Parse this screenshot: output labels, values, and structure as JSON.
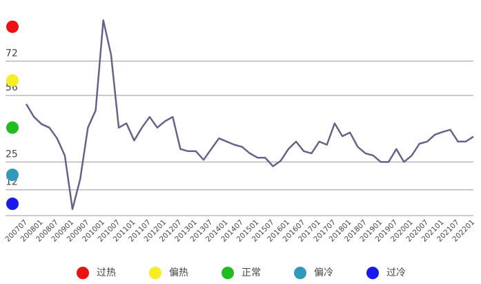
{
  "chart_data": {
    "type": "line",
    "categories": [
      "200707",
      null,
      "200801",
      null,
      "200807",
      null,
      "200901",
      null,
      "200907",
      null,
      "201001",
      null,
      "201007",
      null,
      "201101",
      null,
      "201107",
      null,
      "201201",
      null,
      "201207",
      null,
      "201301",
      null,
      "201307",
      null,
      "201401",
      null,
      "201407",
      null,
      "201501",
      null,
      "201507",
      null,
      "201601",
      null,
      "201607",
      null,
      "201701",
      null,
      "201707",
      null,
      "201801",
      null,
      "201807",
      null,
      "201901",
      null,
      "201907",
      null,
      "202001",
      null,
      "202007",
      null,
      "202101",
      null,
      "202107",
      null,
      "202201"
    ],
    "series": [
      {
        "color": "#63638a",
        "values": [
          52,
          46,
          42.6,
          41,
          36,
          28,
          3,
          17,
          41,
          49,
          91,
          75,
          41,
          43,
          35,
          41,
          46,
          41,
          44,
          46,
          31,
          30,
          30,
          26,
          31,
          36,
          34.5,
          33,
          32,
          29,
          27,
          27,
          23,
          25.5,
          31,
          34.5,
          30,
          29,
          34.5,
          33,
          43,
          37,
          38.7,
          32,
          29,
          28,
          25,
          25,
          31,
          25,
          28,
          33.5,
          34.5,
          37.7,
          39,
          40,
          34.5,
          34.5,
          36.8
        ]
      }
    ],
    "ylim": [
      0,
      95
    ],
    "yticks": [
      12,
      25,
      56,
      72
    ],
    "grid": true,
    "zones": [
      {
        "name": "过热",
        "color": "#ee1111",
        "value": 88
      },
      {
        "name": "偏热",
        "color": "#f6ee22",
        "value": 63
      },
      {
        "name": "正常",
        "color": "#22bb22",
        "value": 41
      },
      {
        "name": "偏冷",
        "color": "#3399bb",
        "value": 19
      },
      {
        "name": "过冷",
        "color": "#1a1aee",
        "value": 5.5
      }
    ]
  }
}
